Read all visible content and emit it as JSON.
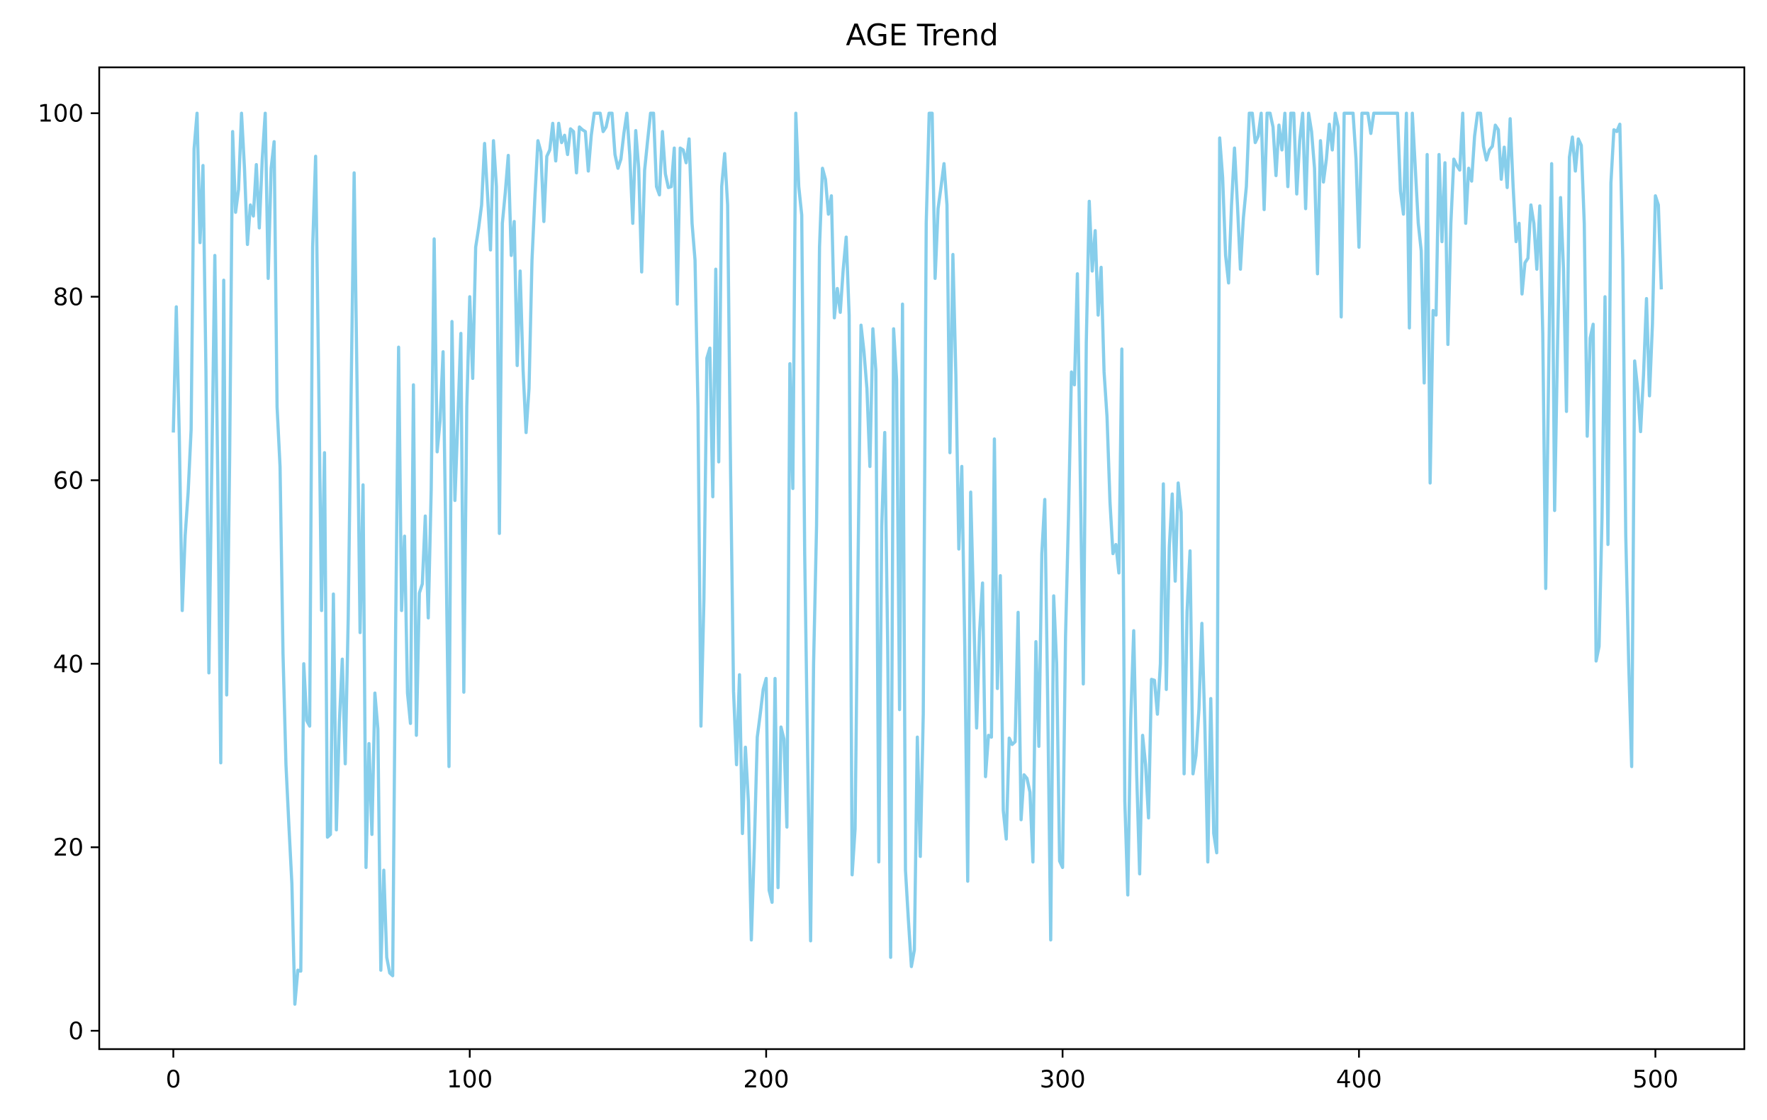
{
  "chart_data": {
    "type": "line",
    "title": "AGE Trend",
    "xlabel": "",
    "ylabel": "",
    "xlim": [
      -25,
      530
    ],
    "ylim": [
      -2,
      105
    ],
    "x_ticks": [
      0,
      100,
      200,
      300,
      400,
      500
    ],
    "y_ticks": [
      0,
      20,
      40,
      60,
      80,
      100
    ],
    "grid": false,
    "legend": "none",
    "line_color": "#87ceeb",
    "series": [
      {
        "x_start": 0,
        "x_step": 1,
        "values": [
          65.2,
          78.9,
          65.0,
          45.8,
          54.0,
          58.7,
          65.5,
          96.1,
          100.0,
          85.9,
          94.3,
          72.0,
          39.0,
          62.0,
          84.5,
          60.0,
          29.2,
          81.8,
          36.6,
          62.5,
          98.0,
          89.2,
          91.7,
          100.0,
          94.0,
          85.7,
          90.0,
          88.8,
          94.4,
          87.5,
          95.0,
          100.0,
          82.0,
          94.0,
          96.9,
          68.0,
          61.5,
          41.1,
          29.0,
          22.3,
          16.0,
          2.9,
          6.6,
          6.5,
          40.0,
          33.8,
          33.2,
          85.4,
          95.3,
          72.0,
          45.8,
          63.0,
          21.1,
          21.4,
          47.6,
          21.9,
          33.5,
          40.5,
          29.1,
          45.0,
          70.0,
          93.5,
          70.0,
          43.4,
          59.5,
          17.8,
          31.3,
          21.4,
          36.8,
          32.9,
          6.6,
          17.5,
          8.0,
          6.3,
          6.0,
          43.8,
          74.5,
          45.8,
          53.9,
          36.8,
          33.5,
          70.4,
          32.2,
          47.7,
          48.7,
          56.1,
          45.0,
          59.0,
          86.3,
          63.1,
          66.5,
          74.0,
          52.0,
          28.8,
          77.3,
          57.8,
          66.8,
          76.0,
          36.9,
          68.0,
          80.0,
          71.1,
          85.4,
          87.5,
          90.0,
          96.7,
          91.1,
          85.1,
          97.0,
          92.0,
          54.2,
          88.0,
          91.4,
          95.4,
          84.5,
          88.2,
          72.5,
          82.8,
          72.0,
          65.2,
          70.0,
          84.0,
          91.0,
          97.0,
          95.8,
          88.2,
          95.3,
          96.0,
          98.9,
          94.8,
          98.9,
          96.8,
          97.6,
          95.5,
          98.3,
          98.0,
          93.5,
          98.5,
          98.2,
          98.0,
          93.7,
          97.6,
          100.0,
          100.0,
          100.0,
          98.0,
          98.5,
          100.0,
          100.0,
          95.5,
          94.0,
          95.0,
          97.8,
          100.0,
          95.4,
          88.0,
          98.1,
          94.0,
          82.7,
          93.8,
          97.0,
          100.0,
          100.0,
          92.0,
          91.1,
          98.0,
          93.4,
          91.9,
          92.0,
          96.2,
          79.2,
          96.2,
          96.0,
          94.6,
          97.2,
          88.0,
          84.0,
          68.0,
          33.2,
          47.0,
          73.3,
          74.4,
          58.2,
          83.0,
          62.0,
          92.0,
          95.6,
          90.0,
          61.0,
          37.0,
          29.0,
          38.8,
          21.5,
          30.9,
          25.0,
          9.9,
          20.0,
          32.0,
          34.5,
          37.2,
          38.4,
          15.3,
          14.0,
          38.4,
          15.6,
          33.1,
          31.8,
          22.2,
          72.7,
          59.1,
          100.0,
          92.0,
          88.9,
          52.0,
          30.0,
          9.8,
          40.0,
          55.0,
          85.4,
          94.0,
          92.8,
          89.0,
          91.0,
          77.7,
          80.9,
          78.3,
          83.0,
          86.5,
          78.0,
          17.0,
          22.0,
          51.0,
          76.9,
          74.0,
          70.0,
          61.5,
          76.5,
          72.0,
          18.4,
          55.0,
          65.2,
          42.0,
          8.0,
          76.5,
          71.0,
          35.0,
          79.2,
          17.5,
          12.0,
          7.0,
          8.8,
          32.0,
          19.0,
          34.5,
          88.0,
          100.0,
          100.0,
          82.0,
          89.6,
          92.0,
          94.5,
          90.0,
          63.0,
          84.6,
          71.5,
          52.5,
          61.5,
          42.0,
          16.3,
          58.7,
          46.0,
          33.0,
          43.5,
          48.8,
          27.7,
          32.2,
          32.0,
          64.5,
          37.3,
          49.6,
          24.0,
          20.9,
          31.9,
          31.2,
          31.5,
          45.6,
          23.0,
          27.9,
          27.5,
          26.0,
          18.4,
          42.4,
          31.0,
          52.0,
          57.9,
          35.5,
          9.9,
          47.4,
          40.0,
          18.5,
          17.8,
          43.0,
          56.0,
          71.8,
          70.4,
          82.5,
          60.0,
          37.8,
          75.0,
          90.4,
          82.8,
          87.2,
          78.0,
          83.2,
          71.8,
          66.9,
          57.6,
          52.0,
          53.0,
          49.9,
          74.3,
          25.0,
          14.8,
          34.0,
          43.6,
          28.0,
          17.1,
          32.2,
          29.0,
          23.2,
          38.3,
          38.2,
          34.5,
          40.0,
          59.6,
          37.2,
          52.7,
          58.5,
          49.0,
          59.7,
          56.5,
          28.0,
          45.7,
          52.3,
          28.0,
          30.0,
          35.0,
          44.4,
          33.3,
          18.4,
          36.2,
          21.5,
          19.4,
          97.3,
          93.0,
          84.5,
          81.5,
          90.0,
          96.2,
          90.0,
          83.0,
          88.6,
          92.0,
          100.0,
          100.0,
          96.8,
          97.5,
          100.0,
          89.5,
          100.0,
          100.0,
          98.5,
          93.2,
          98.7,
          96.0,
          100.0,
          92.0,
          100.0,
          100.0,
          91.2,
          97.0,
          100.0,
          89.6,
          100.0,
          98.0,
          94.0,
          82.5,
          97.0,
          92.5,
          95.0,
          98.8,
          96.0,
          100.0,
          98.5,
          77.8,
          100.0,
          100.0,
          100.0,
          100.0,
          95.0,
          85.4,
          100.0,
          100.0,
          100.0,
          97.8,
          100.0,
          100.0,
          100.0,
          100.0,
          100.0,
          100.0,
          100.0,
          100.0,
          100.0,
          91.5,
          89.0,
          100.0,
          76.6,
          100.0,
          94.0,
          88.0,
          85.0,
          70.6,
          95.5,
          59.7,
          78.5,
          78.0,
          95.5,
          86.0,
          94.6,
          74.8,
          88.0,
          95.0,
          94.3,
          93.8,
          100.0,
          88.0,
          94.0,
          92.6,
          97.5,
          100.0,
          100.0,
          96.4,
          94.9,
          96.0,
          96.4,
          98.7,
          98.2,
          92.8,
          96.3,
          91.9,
          99.4,
          92.0,
          86.0,
          88.0,
          80.3,
          83.7,
          84.2,
          90.0,
          88.0,
          83.0,
          89.9,
          76.0,
          48.2,
          72.0,
          94.5,
          56.7,
          75.0,
          90.8,
          83.0,
          67.5,
          95.2,
          97.4,
          93.7,
          97.2,
          96.5,
          88.0,
          64.8,
          75.5,
          77.0,
          40.3,
          41.9,
          56.0,
          80.0,
          53.0,
          92.4,
          98.2,
          98.0,
          98.8,
          84.0,
          54.0,
          40.0,
          28.8,
          73.0,
          70.0,
          65.3,
          71.5,
          79.8,
          69.2,
          77.0,
          91.0,
          90.0,
          80.8
        ]
      }
    ]
  }
}
